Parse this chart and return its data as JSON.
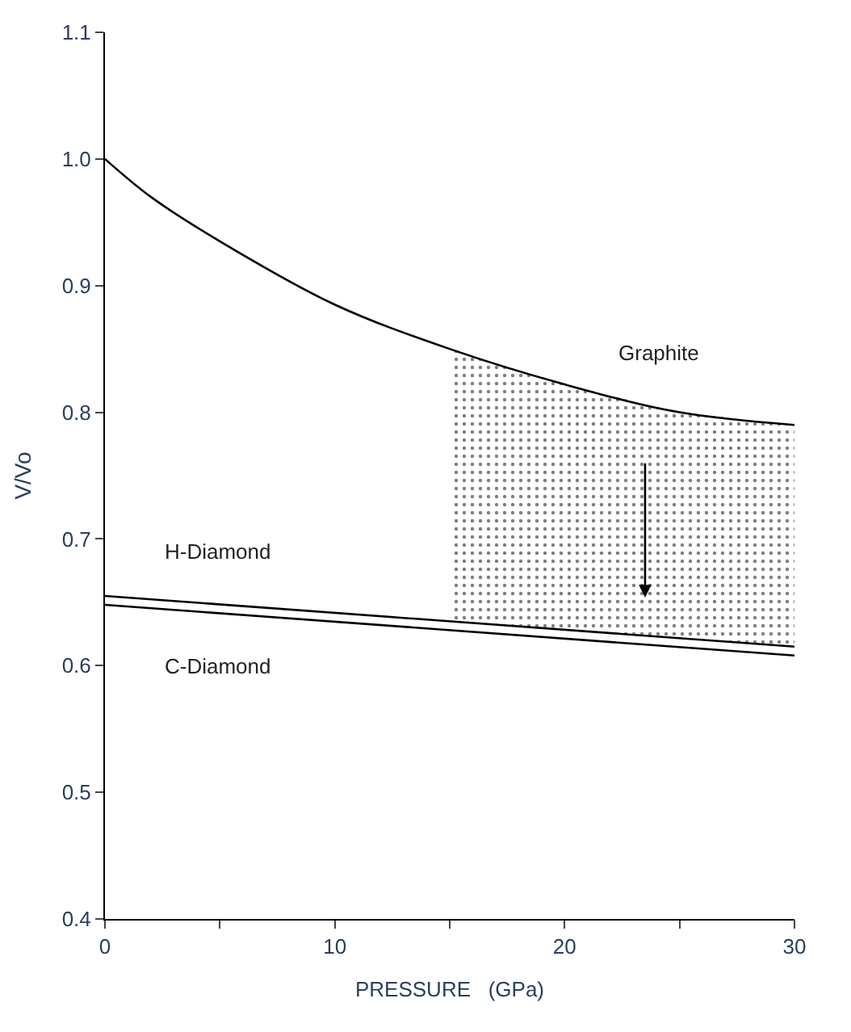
{
  "chart_data": {
    "type": "line",
    "xlabel": "PRESSURE   (GPa)",
    "ylabel": "V/Vo",
    "xlim": [
      0,
      30
    ],
    "ylim": [
      0.4,
      1.1
    ],
    "xticks": [
      0,
      {
        "value": 5,
        "label": null
      },
      10,
      {
        "value": 15,
        "label": null
      },
      20,
      {
        "value": 25,
        "label": null
      },
      30
    ],
    "yticks": [
      0.4,
      0.5,
      0.6,
      0.7,
      0.8,
      0.9,
      {
        "value": 1.0,
        "label": "1.0"
      },
      1.1
    ],
    "legend": false,
    "marker": "none",
    "line_style": "solid",
    "series": [
      {
        "name": "Graphite",
        "color": "#000000",
        "x": [
          0,
          2,
          5,
          10,
          15,
          20,
          25,
          30
        ],
        "values": [
          1.0,
          0.97,
          0.935,
          0.885,
          0.85,
          0.822,
          0.8,
          0.79
        ],
        "upper": [
          null,
          null,
          null,
          null,
          0.85,
          0.822,
          0.8,
          0.79
        ],
        "lower": [
          null,
          null,
          null,
          null,
          0.635,
          0.628,
          0.622,
          0.615
        ]
      },
      {
        "name": "H-Diamond",
        "color": "#000000",
        "x": [
          0,
          30
        ],
        "values": [
          0.655,
          0.615
        ]
      },
      {
        "name": "C-Diamond",
        "color": "#000000",
        "x": [
          0,
          30
        ],
        "values": [
          0.648,
          0.608
        ]
      }
    ]
  }
}
